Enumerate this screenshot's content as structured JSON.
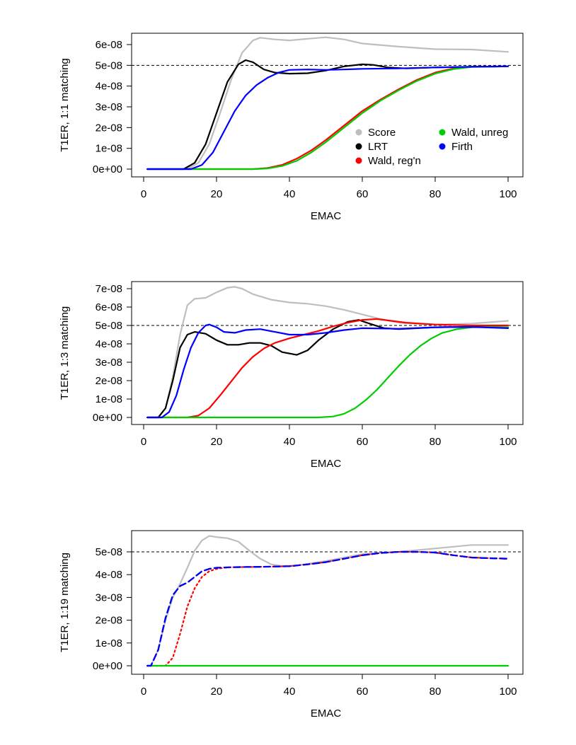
{
  "chart_data": [
    {
      "type": "line",
      "title": "",
      "xlabel": "EMAC",
      "ylabel": "T1ER, 1:1 matching",
      "xlim": [
        0,
        100
      ],
      "ylim": [
        0,
        6.5e-08
      ],
      "xticks": [
        0,
        20,
        40,
        60,
        80,
        100
      ],
      "xtick_labels": [
        "0",
        "20",
        "40",
        "60",
        "80",
        "100"
      ],
      "yticks": [
        0,
        1e-08,
        2e-08,
        3e-08,
        4e-08,
        5e-08,
        6e-08
      ],
      "ytick_labels": [
        "0e+00",
        "1e-08",
        "2e-08",
        "3e-08",
        "4e-08",
        "5e-08",
        "6e-08"
      ],
      "reference_line": 5e-08,
      "legend": [
        {
          "label": "Score",
          "color": "#bebebe"
        },
        {
          "label": "LRT",
          "color": "#000000"
        },
        {
          "label": "Wald, reg'n",
          "color": "#ff0000"
        },
        {
          "label": "Wald, unreg",
          "color": "#00cd00"
        },
        {
          "label": "Firth",
          "color": "#0000ff"
        }
      ],
      "series": [
        {
          "name": "Score",
          "color": "#bebebe",
          "dash": "solid",
          "x": [
            1,
            12,
            15,
            18,
            21,
            24,
            27,
            30,
            32,
            36,
            40,
            45,
            50,
            55,
            60,
            70,
            80,
            90,
            100
          ],
          "y": [
            0,
            0,
            3e-09,
            1.2e-08,
            2.7e-08,
            4.3e-08,
            5.6e-08,
            6.2e-08,
            6.33e-08,
            6.25e-08,
            6.2e-08,
            6.28e-08,
            6.35e-08,
            6.25e-08,
            6.05e-08,
            5.9e-08,
            5.78e-08,
            5.76e-08,
            5.65e-08
          ]
        },
        {
          "name": "LRT",
          "color": "#000000",
          "dash": "solid",
          "x": [
            1,
            11,
            14,
            17,
            20,
            23,
            26,
            28,
            30,
            33,
            36,
            40,
            45,
            50,
            55,
            60,
            63,
            67,
            72,
            80,
            90,
            100
          ],
          "y": [
            0,
            0,
            3e-09,
            1.2e-08,
            2.7e-08,
            4.2e-08,
            5.05e-08,
            5.25e-08,
            5.15e-08,
            4.8e-08,
            4.65e-08,
            4.6e-08,
            4.62e-08,
            4.75e-08,
            4.95e-08,
            5.05e-08,
            5.02e-08,
            4.9e-08,
            4.85e-08,
            4.9e-08,
            4.93e-08,
            4.95e-08
          ]
        },
        {
          "name": "Wald, reg'n",
          "color": "#ff0000",
          "dash": "solid",
          "x": [
            1,
            30,
            34,
            38,
            42,
            46,
            50,
            55,
            60,
            65,
            70,
            75,
            80,
            85,
            90,
            100
          ],
          "y": [
            0,
            0,
            5e-10,
            2e-09,
            5e-09,
            9e-09,
            1.4e-08,
            2.1e-08,
            2.8e-08,
            3.35e-08,
            3.85e-08,
            4.3e-08,
            4.65e-08,
            4.85e-08,
            4.93e-08,
            4.95e-08
          ]
        },
        {
          "name": "Wald, unreg",
          "color": "#00cd00",
          "dash": "solid",
          "x": [
            1,
            30,
            34,
            38,
            42,
            46,
            50,
            55,
            60,
            65,
            70,
            75,
            80,
            85,
            90,
            100
          ],
          "y": [
            0,
            0,
            3e-10,
            1.5e-09,
            4e-09,
            8e-09,
            1.3e-08,
            2e-08,
            2.7e-08,
            3.3e-08,
            3.8e-08,
            4.25e-08,
            4.6e-08,
            4.82e-08,
            4.92e-08,
            4.95e-08
          ]
        },
        {
          "name": "Firth",
          "color": "#0000ff",
          "dash": "solid",
          "x": [
            1,
            13,
            16,
            19,
            22,
            25,
            28,
            31,
            34,
            37,
            40,
            45,
            50,
            55,
            60,
            70,
            80,
            90,
            100
          ],
          "y": [
            0,
            0,
            2e-09,
            8e-09,
            1.8e-08,
            2.8e-08,
            3.55e-08,
            4.05e-08,
            4.4e-08,
            4.65e-08,
            4.78e-08,
            4.8e-08,
            4.78e-08,
            4.8e-08,
            4.83e-08,
            4.85e-08,
            4.9e-08,
            4.93e-08,
            4.95e-08
          ]
        }
      ]
    },
    {
      "type": "line",
      "title": "",
      "xlabel": "EMAC",
      "ylabel": "T1ER, 1:3 matching",
      "xlim": [
        0,
        100
      ],
      "ylim": [
        0,
        7.4e-08
      ],
      "xticks": [
        0,
        20,
        40,
        60,
        80,
        100
      ],
      "xtick_labels": [
        "0",
        "20",
        "40",
        "60",
        "80",
        "100"
      ],
      "yticks": [
        0,
        1e-08,
        2e-08,
        3e-08,
        4e-08,
        5e-08,
        6e-08,
        7e-08
      ],
      "ytick_labels": [
        "0e+00",
        "1e-08",
        "2e-08",
        "3e-08",
        "4e-08",
        "5e-08",
        "6e-08",
        "7e-08"
      ],
      "reference_line": 5e-08,
      "series": [
        {
          "name": "Score",
          "color": "#bebebe",
          "dash": "solid",
          "x": [
            1,
            4,
            6,
            8,
            10,
            12,
            14,
            17,
            20,
            23,
            25,
            27,
            30,
            35,
            40,
            45,
            50,
            55,
            60,
            65,
            70,
            80,
            90,
            100
          ],
          "y": [
            0,
            0,
            5e-09,
            2.2e-08,
            4.5e-08,
            6.1e-08,
            6.45e-08,
            6.5e-08,
            6.8e-08,
            7.05e-08,
            7.1e-08,
            7e-08,
            6.7e-08,
            6.4e-08,
            6.25e-08,
            6.18e-08,
            6.05e-08,
            5.85e-08,
            5.6e-08,
            5.35e-08,
            5.15e-08,
            5.05e-08,
            5.1e-08,
            5.25e-08
          ]
        },
        {
          "name": "LRT",
          "color": "#000000",
          "dash": "solid",
          "x": [
            1,
            4,
            6,
            8,
            10,
            12,
            14,
            17,
            20,
            23,
            26,
            29,
            32,
            35,
            38,
            42,
            45,
            48,
            52,
            56,
            59,
            62,
            66,
            70,
            80,
            90,
            100
          ],
          "y": [
            0,
            0,
            5e-09,
            2e-08,
            3.8e-08,
            4.5e-08,
            4.65e-08,
            4.55e-08,
            4.2e-08,
            3.95e-08,
            3.95e-08,
            4.05e-08,
            4.05e-08,
            3.9e-08,
            3.55e-08,
            3.4e-08,
            3.65e-08,
            4.2e-08,
            4.8e-08,
            5.2e-08,
            5.3e-08,
            5.1e-08,
            4.85e-08,
            4.8e-08,
            4.9e-08,
            4.93e-08,
            4.9e-08
          ]
        },
        {
          "name": "Wald, reg'n",
          "color": "#ff0000",
          "dash": "solid",
          "x": [
            1,
            12,
            15,
            18,
            21,
            24,
            27,
            30,
            33,
            36,
            40,
            44,
            48,
            52,
            56,
            60,
            64,
            68,
            72,
            80,
            90,
            100
          ],
          "y": [
            0,
            0,
            1e-09,
            5e-09,
            1.2e-08,
            1.95e-08,
            2.7e-08,
            3.3e-08,
            3.75e-08,
            4.05e-08,
            4.3e-08,
            4.5e-08,
            4.7e-08,
            4.95e-08,
            5.15e-08,
            5.3e-08,
            5.35e-08,
            5.25e-08,
            5.15e-08,
            5.05e-08,
            5e-08,
            5e-08
          ]
        },
        {
          "name": "Wald, unreg",
          "color": "#00cd00",
          "dash": "solid",
          "x": [
            1,
            48,
            52,
            55,
            58,
            61,
            64,
            67,
            70,
            73,
            76,
            79,
            82,
            86,
            90,
            95,
            100
          ],
          "y": [
            0,
            0,
            5e-10,
            2e-09,
            5e-09,
            9.5e-09,
            1.5e-08,
            2.15e-08,
            2.8e-08,
            3.4e-08,
            3.9e-08,
            4.3e-08,
            4.6e-08,
            4.8e-08,
            4.9e-08,
            4.92e-08,
            4.9e-08
          ]
        },
        {
          "name": "Firth",
          "color": "#0000ff",
          "dash": "solid",
          "x": [
            1,
            5,
            7,
            9,
            11,
            13,
            15,
            17,
            18,
            20,
            22,
            25,
            28,
            32,
            36,
            40,
            45,
            50,
            55,
            60,
            70,
            80,
            90,
            100
          ],
          "y": [
            0,
            0,
            3e-09,
            1.2e-08,
            2.6e-08,
            3.8e-08,
            4.6e-08,
            5e-08,
            5.05e-08,
            4.9e-08,
            4.65e-08,
            4.6e-08,
            4.75e-08,
            4.8e-08,
            4.65e-08,
            4.5e-08,
            4.5e-08,
            4.6e-08,
            4.75e-08,
            4.85e-08,
            4.82e-08,
            4.9e-08,
            4.92e-08,
            4.85e-08
          ]
        }
      ]
    },
    {
      "type": "line",
      "title": "",
      "xlabel": "EMAC",
      "ylabel": "T1ER, 1:19 matching",
      "xlim": [
        0,
        100
      ],
      "ylim": [
        0,
        5.9e-08
      ],
      "xticks": [
        0,
        20,
        40,
        60,
        80,
        100
      ],
      "xtick_labels": [
        "0",
        "20",
        "40",
        "60",
        "80",
        "100"
      ],
      "yticks": [
        0,
        1e-08,
        2e-08,
        3e-08,
        4e-08,
        5e-08
      ],
      "ytick_labels": [
        "0e+00",
        "1e-08",
        "2e-08",
        "3e-08",
        "4e-08",
        "5e-08"
      ],
      "reference_line": 5e-08,
      "series": [
        {
          "name": "Score",
          "color": "#bebebe",
          "dash": "solid",
          "x": [
            1,
            2,
            4,
            6,
            8,
            10,
            12,
            14,
            16,
            18,
            20,
            23,
            26,
            29,
            32,
            35,
            38,
            42,
            50,
            60,
            70,
            80,
            90,
            100
          ],
          "y": [
            0,
            0,
            7e-09,
            2e-08,
            3e-08,
            3.6e-08,
            4.3e-08,
            5.05e-08,
            5.5e-08,
            5.7e-08,
            5.65e-08,
            5.6e-08,
            5.45e-08,
            5.05e-08,
            4.7e-08,
            4.45e-08,
            4.38e-08,
            4.4e-08,
            4.6e-08,
            4.9e-08,
            5e-08,
            5.15e-08,
            5.3e-08,
            5.3e-08
          ]
        },
        {
          "name": "LRT",
          "color": "#000000",
          "dash": "dashed",
          "x": [
            1,
            2,
            4,
            6,
            8,
            10,
            12,
            14,
            16,
            18,
            20,
            25,
            30,
            35,
            40,
            45,
            50,
            55,
            60,
            65,
            70,
            75,
            80,
            85,
            90,
            95,
            100
          ],
          "y": [
            0,
            0,
            7e-09,
            2.1e-08,
            3.1e-08,
            3.5e-08,
            3.65e-08,
            3.9e-08,
            4.15e-08,
            4.25e-08,
            4.3e-08,
            4.33e-08,
            4.34e-08,
            4.35e-08,
            4.37e-08,
            4.45e-08,
            4.55e-08,
            4.7e-08,
            4.85e-08,
            4.95e-08,
            5e-08,
            5e-08,
            4.97e-08,
            4.85e-08,
            4.75e-08,
            4.72e-08,
            4.7e-08
          ]
        },
        {
          "name": "Wald, reg'n",
          "color": "#ff0000",
          "dash": "dotted",
          "x": [
            1,
            6,
            8,
            10,
            12,
            14,
            16,
            18,
            20,
            22,
            25,
            30,
            35,
            40,
            45,
            50,
            55,
            60,
            65,
            70,
            75,
            80,
            85,
            90,
            95,
            100
          ],
          "y": [
            0,
            0,
            3.5e-09,
            1.4e-08,
            2.6e-08,
            3.4e-08,
            3.9e-08,
            4.15e-08,
            4.25e-08,
            4.3e-08,
            4.33e-08,
            4.34e-08,
            4.35e-08,
            4.37e-08,
            4.45e-08,
            4.55e-08,
            4.7e-08,
            4.85e-08,
            4.95e-08,
            5e-08,
            5e-08,
            4.97e-08,
            4.85e-08,
            4.75e-08,
            4.72e-08,
            4.7e-08
          ]
        },
        {
          "name": "Wald, unreg",
          "color": "#00cd00",
          "dash": "solid",
          "x": [
            1,
            100
          ],
          "y": [
            0,
            0
          ]
        },
        {
          "name": "Firth",
          "color": "#0000ff",
          "dash": "dashed",
          "x": [
            1,
            2,
            4,
            6,
            8,
            10,
            12,
            14,
            16,
            18,
            20,
            25,
            30,
            35,
            40,
            45,
            50,
            55,
            60,
            65,
            70,
            75,
            80,
            85,
            90,
            95,
            100
          ],
          "y": [
            0,
            0,
            7e-09,
            2.1e-08,
            3.1e-08,
            3.5e-08,
            3.65e-08,
            3.9e-08,
            4.15e-08,
            4.25e-08,
            4.3e-08,
            4.33e-08,
            4.34e-08,
            4.35e-08,
            4.37e-08,
            4.45e-08,
            4.55e-08,
            4.7e-08,
            4.85e-08,
            4.95e-08,
            5e-08,
            5e-08,
            4.97e-08,
            4.85e-08,
            4.75e-08,
            4.72e-08,
            4.7e-08
          ]
        }
      ]
    }
  ]
}
